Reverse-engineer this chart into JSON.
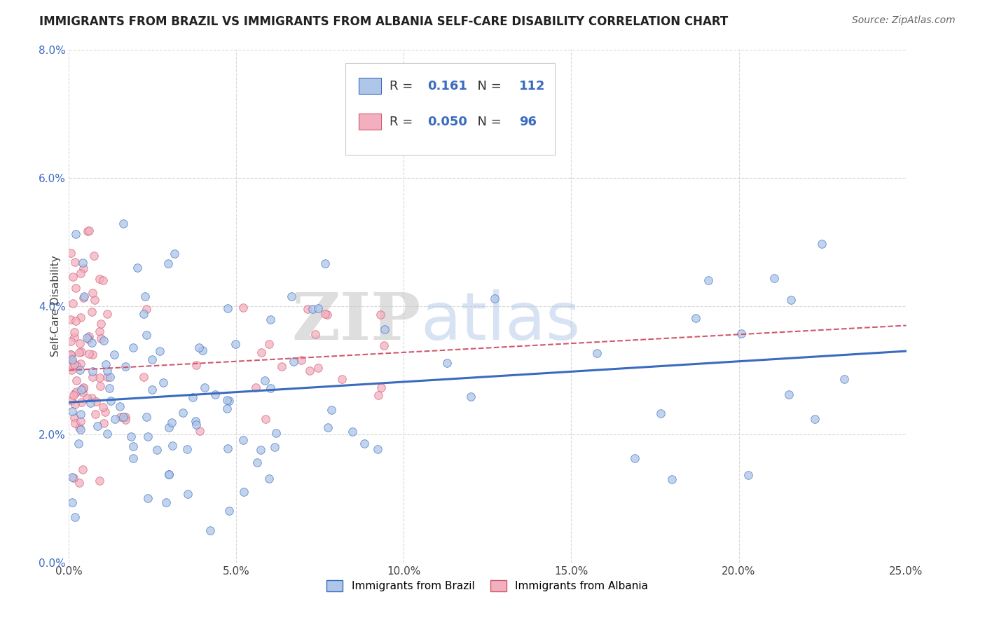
{
  "title": "IMMIGRANTS FROM BRAZIL VS IMMIGRANTS FROM ALBANIA SELF-CARE DISABILITY CORRELATION CHART",
  "source": "Source: ZipAtlas.com",
  "ylabel": "Self-Care Disability",
  "xlim": [
    0.0,
    0.25
  ],
  "ylim": [
    0.0,
    0.08
  ],
  "xticks": [
    0.0,
    0.05,
    0.1,
    0.15,
    0.2,
    0.25
  ],
  "yticks": [
    0.0,
    0.02,
    0.04,
    0.06,
    0.08
  ],
  "legend_label_brazil": "Immigrants from Brazil",
  "legend_label_albania": "Immigrants from Albania",
  "r_brazil": "0.161",
  "n_brazil": "112",
  "r_albania": "0.050",
  "n_albania": "96",
  "color_brazil": "#aec6e8",
  "color_albania": "#f2b0be",
  "line_color_brazil": "#3a6bbf",
  "line_color_albania": "#d05870",
  "watermark_zip": "ZIP",
  "watermark_atlas": "atlas",
  "background_color": "#ffffff",
  "grid_color": "#d0d0d0"
}
